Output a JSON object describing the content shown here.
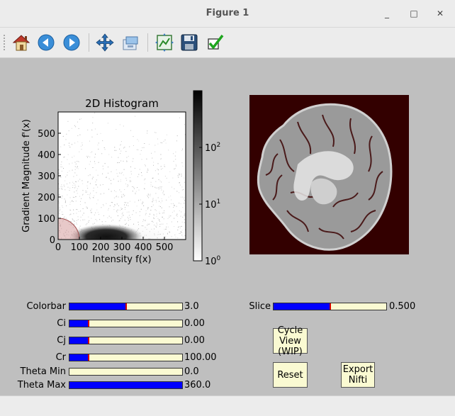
{
  "window": {
    "title": "Figure 1",
    "minimize": "_",
    "maximize": "□",
    "close": "✕"
  },
  "toolbar": {
    "items": [
      "home-icon",
      "back-icon",
      "forward-icon",
      "pan-icon",
      "zoom-icon",
      "configure-subplots-icon",
      "save-icon",
      "check-icon"
    ]
  },
  "histogram": {
    "title": "2D Histogram",
    "xlabel": "Intensity f(x)",
    "ylabel": "Gradient Magnitude f'(x)",
    "xticks": [
      "0",
      "100",
      "200",
      "300",
      "400",
      "500"
    ],
    "yticks": [
      "0",
      "100",
      "200",
      "300",
      "400",
      "500"
    ],
    "xlim": [
      0,
      600
    ],
    "ylim": [
      0,
      600
    ],
    "colorbar_ticks": [
      {
        "base": "10",
        "exp": "0",
        "value": 1
      },
      {
        "base": "10",
        "exp": "1",
        "value": 10
      },
      {
        "base": "10",
        "exp": "2",
        "value": 100
      }
    ]
  },
  "chart_data": {
    "type": "heatmap",
    "title": "2D Histogram",
    "xlabel": "Intensity f(x)",
    "ylabel": "Gradient Magnitude f'(x)",
    "xlim": [
      0,
      600
    ],
    "ylim": [
      0,
      600
    ],
    "x_ticks": [
      0,
      100,
      200,
      300,
      400,
      500
    ],
    "y_ticks": [
      0,
      100,
      200,
      300,
      400,
      500
    ],
    "colorbar": {
      "scale": "log",
      "range": [
        1,
        1000
      ],
      "ticks": [
        1,
        10,
        100
      ],
      "colormap": "gray_r"
    },
    "density_peaks": [
      {
        "x": 230,
        "y": 20
      }
    ],
    "selection_circle": {
      "center": [
        0,
        0
      ],
      "radius": 100,
      "color": "#b06060"
    }
  },
  "controls": {
    "sliders": [
      {
        "name": "colorbar-slider",
        "label": "Colorbar",
        "value": "3.0",
        "fraction": 0.5,
        "mark": true
      },
      {
        "name": "ci-slider",
        "label": "Ci",
        "value": "0.00",
        "fraction": 0.17,
        "mark": true
      },
      {
        "name": "cj-slider",
        "label": "Cj",
        "value": "0.00",
        "fraction": 0.17,
        "mark": true
      },
      {
        "name": "cr-slider",
        "label": "Cr",
        "value": "100.00",
        "fraction": 0.17,
        "mark": true
      },
      {
        "name": "theta-min-slider",
        "label": "Theta Min",
        "value": "0.0",
        "fraction": 0.0,
        "mark": false
      },
      {
        "name": "theta-max-slider",
        "label": "Theta Max",
        "value": "360.0",
        "fraction": 1.0,
        "mark": false
      }
    ],
    "slice": {
      "label": "Slice",
      "value": "0.500",
      "fraction": 0.5
    },
    "buttons": {
      "cycle_view": "Cycle\nView\n(WIP)",
      "reset": "Reset",
      "export_nifti": "Export\nNifti"
    }
  },
  "colors": {
    "slider_fill": "#0000ff",
    "slider_bg": "#fafad2",
    "slider_mark": "#d40000",
    "brain_bg": "#330000",
    "figure_bg": "#bfbfbf"
  }
}
